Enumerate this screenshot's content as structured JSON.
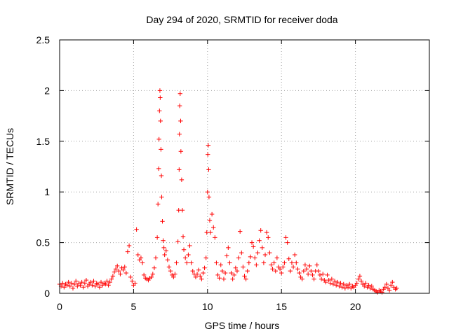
{
  "chart_data": {
    "type": "scatter",
    "title": "Day 294 of 2020, SRMTID for receiver doda",
    "xlabel": "GPS time / hours",
    "ylabel": "SRMTID / TECUs",
    "xlim": [
      0,
      25
    ],
    "ylim": [
      0,
      2.5
    ],
    "xticks": [
      0,
      5,
      10,
      15,
      20
    ],
    "yticks": [
      0,
      0.5,
      1,
      1.5,
      2,
      2.5
    ],
    "xtick_labels": [
      "0",
      "5",
      "10",
      "15",
      "20"
    ],
    "ytick_labels": [
      "0",
      "0.5",
      "1",
      "1.5",
      "2",
      "2.5"
    ],
    "grid": true,
    "marker": "+",
    "marker_color": "#ff0000",
    "series": [
      {
        "name": "SRMTID",
        "points": [
          [
            0.0,
            0.09
          ],
          [
            0.1,
            0.07
          ],
          [
            0.2,
            0.1
          ],
          [
            0.3,
            0.06
          ],
          [
            0.4,
            0.09
          ],
          [
            0.5,
            0.08
          ],
          [
            0.6,
            0.11
          ],
          [
            0.7,
            0.07
          ],
          [
            0.8,
            0.1
          ],
          [
            0.9,
            0.05
          ],
          [
            1.0,
            0.09
          ],
          [
            1.1,
            0.12
          ],
          [
            1.2,
            0.07
          ],
          [
            1.3,
            0.1
          ],
          [
            1.4,
            0.08
          ],
          [
            1.5,
            0.11
          ],
          [
            1.6,
            0.06
          ],
          [
            1.7,
            0.1
          ],
          [
            1.8,
            0.13
          ],
          [
            1.9,
            0.07
          ],
          [
            2.0,
            0.09
          ],
          [
            2.1,
            0.11
          ],
          [
            2.2,
            0.08
          ],
          [
            2.3,
            0.12
          ],
          [
            2.4,
            0.07
          ],
          [
            2.5,
            0.1
          ],
          [
            2.6,
            0.09
          ],
          [
            2.7,
            0.06
          ],
          [
            2.8,
            0.11
          ],
          [
            2.9,
            0.08
          ],
          [
            3.0,
            0.1
          ],
          [
            3.1,
            0.09
          ],
          [
            3.2,
            0.12
          ],
          [
            3.3,
            0.08
          ],
          [
            3.4,
            0.11
          ],
          [
            3.5,
            0.14
          ],
          [
            3.6,
            0.17
          ],
          [
            3.7,
            0.21
          ],
          [
            3.8,
            0.24
          ],
          [
            3.9,
            0.27
          ],
          [
            4.0,
            0.22
          ],
          [
            4.1,
            0.19
          ],
          [
            4.2,
            0.25
          ],
          [
            4.3,
            0.23
          ],
          [
            4.4,
            0.26
          ],
          [
            4.5,
            0.2
          ],
          [
            4.6,
            0.41
          ],
          [
            4.7,
            0.47
          ],
          [
            4.8,
            0.16
          ],
          [
            4.9,
            0.12
          ],
          [
            5.0,
            0.08
          ],
          [
            5.1,
            0.1
          ],
          [
            5.2,
            0.63
          ],
          [
            5.3,
            0.38
          ],
          [
            5.4,
            0.33
          ],
          [
            5.5,
            0.35
          ],
          [
            5.6,
            0.3
          ],
          [
            5.7,
            0.18
          ],
          [
            5.8,
            0.15
          ],
          [
            5.9,
            0.14
          ],
          [
            6.0,
            0.13
          ],
          [
            6.1,
            0.15
          ],
          [
            6.2,
            0.16
          ],
          [
            6.3,
            0.19
          ],
          [
            6.4,
            0.25
          ],
          [
            6.5,
            0.35
          ],
          [
            6.6,
            0.55
          ],
          [
            6.65,
            0.88
          ],
          [
            6.7,
            1.23
          ],
          [
            6.72,
            1.52
          ],
          [
            6.75,
            1.8
          ],
          [
            6.78,
            2.0
          ],
          [
            6.8,
            1.93
          ],
          [
            6.82,
            1.7
          ],
          [
            6.85,
            1.42
          ],
          [
            6.88,
            1.16
          ],
          [
            6.9,
            0.95
          ],
          [
            6.95,
            0.71
          ],
          [
            7.0,
            0.52
          ],
          [
            7.05,
            0.45
          ],
          [
            7.1,
            0.38
          ],
          [
            7.2,
            0.42
          ],
          [
            7.3,
            0.33
          ],
          [
            7.4,
            0.26
          ],
          [
            7.5,
            0.22
          ],
          [
            7.6,
            0.18
          ],
          [
            7.7,
            0.16
          ],
          [
            7.8,
            0.19
          ],
          [
            7.9,
            0.3
          ],
          [
            8.0,
            0.51
          ],
          [
            8.05,
            0.82
          ],
          [
            8.08,
            1.22
          ],
          [
            8.1,
            1.57
          ],
          [
            8.12,
            1.85
          ],
          [
            8.15,
            1.97
          ],
          [
            8.18,
            1.7
          ],
          [
            8.2,
            1.4
          ],
          [
            8.25,
            1.12
          ],
          [
            8.3,
            0.82
          ],
          [
            8.35,
            0.56
          ],
          [
            8.4,
            0.43
          ],
          [
            8.5,
            0.35
          ],
          [
            8.6,
            0.3
          ],
          [
            8.7,
            0.38
          ],
          [
            8.8,
            0.47
          ],
          [
            8.9,
            0.3
          ],
          [
            9.0,
            0.22
          ],
          [
            9.1,
            0.19
          ],
          [
            9.2,
            0.16
          ],
          [
            9.3,
            0.19
          ],
          [
            9.4,
            0.23
          ],
          [
            9.5,
            0.17
          ],
          [
            9.6,
            0.14
          ],
          [
            9.7,
            0.2
          ],
          [
            9.8,
            0.25
          ],
          [
            9.9,
            0.35
          ],
          [
            9.95,
            0.6
          ],
          [
            10.0,
            1.0
          ],
          [
            10.02,
            1.37
          ],
          [
            10.05,
            1.46
          ],
          [
            10.08,
            1.22
          ],
          [
            10.1,
            0.95
          ],
          [
            10.15,
            0.72
          ],
          [
            10.2,
            0.6
          ],
          [
            10.3,
            0.78
          ],
          [
            10.4,
            0.65
          ],
          [
            10.5,
            0.55
          ],
          [
            10.6,
            0.3
          ],
          [
            10.7,
            0.18
          ],
          [
            10.8,
            0.15
          ],
          [
            10.9,
            0.28
          ],
          [
            11.0,
            0.22
          ],
          [
            11.1,
            0.14
          ],
          [
            11.2,
            0.2
          ],
          [
            11.3,
            0.37
          ],
          [
            11.4,
            0.45
          ],
          [
            11.5,
            0.3
          ],
          [
            11.6,
            0.2
          ],
          [
            11.7,
            0.14
          ],
          [
            11.8,
            0.18
          ],
          [
            11.9,
            0.25
          ],
          [
            12.0,
            0.22
          ],
          [
            12.1,
            0.35
          ],
          [
            12.2,
            0.61
          ],
          [
            12.3,
            0.4
          ],
          [
            12.4,
            0.26
          ],
          [
            12.5,
            0.17
          ],
          [
            12.6,
            0.14
          ],
          [
            12.7,
            0.22
          ],
          [
            12.8,
            0.3
          ],
          [
            12.9,
            0.36
          ],
          [
            13.0,
            0.5
          ],
          [
            13.1,
            0.46
          ],
          [
            13.2,
            0.35
          ],
          [
            13.3,
            0.28
          ],
          [
            13.4,
            0.4
          ],
          [
            13.5,
            0.52
          ],
          [
            13.6,
            0.62
          ],
          [
            13.7,
            0.45
          ],
          [
            13.8,
            0.3
          ],
          [
            13.9,
            0.38
          ],
          [
            14.0,
            0.6
          ],
          [
            14.1,
            0.55
          ],
          [
            14.2,
            0.4
          ],
          [
            14.3,
            0.28
          ],
          [
            14.4,
            0.24
          ],
          [
            14.5,
            0.3
          ],
          [
            14.6,
            0.22
          ],
          [
            14.7,
            0.35
          ],
          [
            14.8,
            0.26
          ],
          [
            14.9,
            0.24
          ],
          [
            15.0,
            0.2
          ],
          [
            15.1,
            0.26
          ],
          [
            15.2,
            0.3
          ],
          [
            15.3,
            0.55
          ],
          [
            15.4,
            0.5
          ],
          [
            15.5,
            0.34
          ],
          [
            15.6,
            0.22
          ],
          [
            15.7,
            0.3
          ],
          [
            15.8,
            0.26
          ],
          [
            15.9,
            0.38
          ],
          [
            16.0,
            0.3
          ],
          [
            16.1,
            0.24
          ],
          [
            16.2,
            0.2
          ],
          [
            16.3,
            0.16
          ],
          [
            16.4,
            0.14
          ],
          [
            16.5,
            0.22
          ],
          [
            16.6,
            0.28
          ],
          [
            16.7,
            0.24
          ],
          [
            16.8,
            0.19
          ],
          [
            16.9,
            0.27
          ],
          [
            17.0,
            0.22
          ],
          [
            17.1,
            0.18
          ],
          [
            17.2,
            0.14
          ],
          [
            17.3,
            0.22
          ],
          [
            17.4,
            0.28
          ],
          [
            17.5,
            0.22
          ],
          [
            17.6,
            0.18
          ],
          [
            17.7,
            0.14
          ],
          [
            17.8,
            0.19
          ],
          [
            17.9,
            0.13
          ],
          [
            18.0,
            0.11
          ],
          [
            18.1,
            0.18
          ],
          [
            18.2,
            0.13
          ],
          [
            18.3,
            0.1
          ],
          [
            18.4,
            0.14
          ],
          [
            18.5,
            0.09
          ],
          [
            18.6,
            0.12
          ],
          [
            18.7,
            0.08
          ],
          [
            18.8,
            0.11
          ],
          [
            18.9,
            0.07
          ],
          [
            19.0,
            0.1
          ],
          [
            19.1,
            0.06
          ],
          [
            19.2,
            0.09
          ],
          [
            19.3,
            0.05
          ],
          [
            19.4,
            0.08
          ],
          [
            19.5,
            0.06
          ],
          [
            19.6,
            0.09
          ],
          [
            19.7,
            0.05
          ],
          [
            19.8,
            0.07
          ],
          [
            19.9,
            0.06
          ],
          [
            20.0,
            0.08
          ],
          [
            20.1,
            0.1
          ],
          [
            20.2,
            0.14
          ],
          [
            20.3,
            0.17
          ],
          [
            20.4,
            0.12
          ],
          [
            20.5,
            0.09
          ],
          [
            20.6,
            0.07
          ],
          [
            20.7,
            0.1
          ],
          [
            20.8,
            0.06
          ],
          [
            20.9,
            0.08
          ],
          [
            21.0,
            0.05
          ],
          [
            21.1,
            0.07
          ],
          [
            21.2,
            0.04
          ],
          [
            21.3,
            0.03
          ],
          [
            21.4,
            0.02
          ],
          [
            21.5,
            0.01
          ],
          [
            21.6,
            0.03
          ],
          [
            21.7,
            0.02
          ],
          [
            21.8,
            0.01
          ],
          [
            21.9,
            0.04
          ],
          [
            22.0,
            0.06
          ],
          [
            22.1,
            0.09
          ],
          [
            22.2,
            0.05
          ],
          [
            22.3,
            0.03
          ],
          [
            22.4,
            0.08
          ],
          [
            22.5,
            0.11
          ],
          [
            22.6,
            0.06
          ],
          [
            22.7,
            0.04
          ],
          [
            22.8,
            0.05
          ]
        ]
      }
    ]
  }
}
